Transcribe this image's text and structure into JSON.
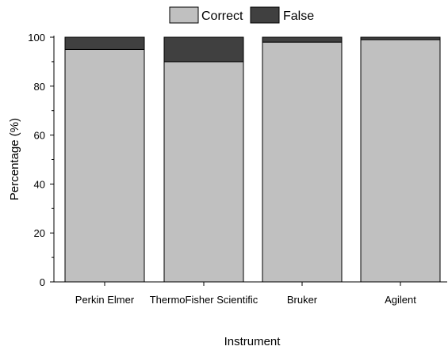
{
  "chart_data": {
    "type": "bar",
    "stacked": true,
    "categories": [
      "Perkin Elmer",
      "ThermoFisher Scientific",
      "Bruker",
      "Agilent"
    ],
    "series": [
      {
        "name": "Correct",
        "values": [
          95,
          90,
          98,
          99
        ],
        "color": "#c0c0c0"
      },
      {
        "name": "False",
        "values": [
          5,
          10,
          2,
          1
        ],
        "color": "#404040"
      }
    ],
    "title": "",
    "xlabel": "Instrument",
    "ylabel": "Percentage (%)",
    "ylim": [
      0,
      100
    ],
    "yticks": [
      0,
      20,
      40,
      60,
      80,
      100
    ],
    "grid": false,
    "legend_position": "top"
  }
}
